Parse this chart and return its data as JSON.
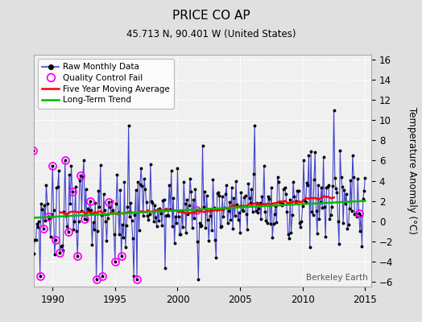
{
  "title": "PRICE CO AP",
  "subtitle": "45.713 N, 90.401 W (United States)",
  "ylabel": "Temperature Anomaly (°C)",
  "watermark": "Berkeley Earth",
  "xlim": [
    1988.5,
    2015.5
  ],
  "ylim": [
    -6.5,
    16.5
  ],
  "yticks": [
    -6,
    -4,
    -2,
    0,
    2,
    4,
    6,
    8,
    10,
    12,
    14,
    16
  ],
  "xticks": [
    1990,
    1995,
    2000,
    2005,
    2010,
    2015
  ],
  "bg_color": "#e0e0e0",
  "plot_bg_color": "#f0f0f0",
  "grid_color": "#ffffff",
  "raw_line_color": "#4444cc",
  "raw_dot_color": "#000000",
  "ma_color": "#ff0000",
  "trend_color": "#00bb00",
  "qc_color": "#ff00ff",
  "legend_items": [
    "Raw Monthly Data",
    "Quality Control Fail",
    "Five Year Moving Average",
    "Long-Term Trend"
  ]
}
